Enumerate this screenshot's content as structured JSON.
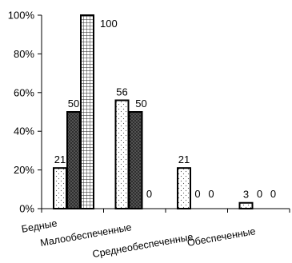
{
  "chart_data": {
    "type": "bar",
    "categories": [
      "Бедные",
      "Малообеспеченные",
      "Среднеобеспеченные",
      "Обеспеченные"
    ],
    "series": [
      {
        "values": [
          21,
          56,
          21,
          3
        ],
        "pattern": "dotted-light",
        "color": "#ffffff"
      },
      {
        "values": [
          50,
          50,
          0,
          0
        ],
        "pattern": "dotted-dark",
        "color": "#333333"
      },
      {
        "values": [
          100,
          0,
          0,
          0
        ],
        "pattern": "grid",
        "color": "#ffffff"
      }
    ],
    "title": "",
    "xlabel": "",
    "ylabel": "",
    "ylim": [
      0,
      100
    ],
    "y_ticks": [
      "0%",
      "20%",
      "40%",
      "60%",
      "80%",
      "100%"
    ],
    "y_tick_values": [
      0,
      20,
      40,
      60,
      80,
      100
    ],
    "grid": false,
    "legend": "none"
  }
}
